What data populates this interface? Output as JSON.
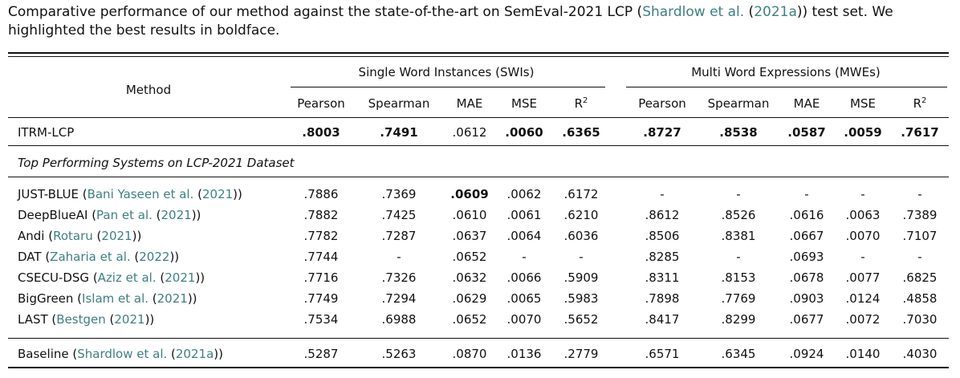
{
  "caption": {
    "before": "Comparative performance of our method against the state-of-the-art on SemEval-2021 LCP (",
    "cite_name": "Shardlow et al.",
    "mid": " (",
    "cite_year": "2021a",
    "after": ")) test set. We highlighted the best results in boldface."
  },
  "table": {
    "method_header": "Method",
    "group_swi": "Single Word Instances (SWIs)",
    "group_mwe": "Multi Word Expressions (MWEs)",
    "metric_headers": [
      "Pearson",
      "Spearman",
      "MAE",
      "MSE",
      "R"
    ],
    "r_sup": "2",
    "section_title": "Top Performing Systems on LCP-2021 Dataset",
    "rows": [
      {
        "name": "ITRM-LCP",
        "cite_name": "",
        "cite_year": "",
        "values": [
          ".8003",
          ".7491",
          ".0612",
          ".0060",
          ".6365",
          ".8727",
          ".8538",
          ".0587",
          ".0059",
          ".7617"
        ],
        "bold": [
          true,
          true,
          false,
          true,
          true,
          true,
          true,
          true,
          true,
          true
        ]
      },
      {
        "name": "JUST-BLUE",
        "cite_name": "Bani Yaseen et al.",
        "cite_year": "2021",
        "values": [
          ".7886",
          ".7369",
          ".0609",
          ".0062",
          ".6172",
          "-",
          "-",
          "-",
          "-",
          "-"
        ],
        "bold": [
          false,
          false,
          true,
          false,
          false,
          false,
          false,
          false,
          false,
          false
        ]
      },
      {
        "name": "DeepBlueAI",
        "cite_name": "Pan et al.",
        "cite_year": "2021",
        "values": [
          ".7882",
          ".7425",
          ".0610",
          ".0061",
          ".6210",
          ".8612",
          ".8526",
          ".0616",
          ".0063",
          ".7389"
        ],
        "bold": [
          false,
          false,
          false,
          false,
          false,
          false,
          false,
          false,
          false,
          false
        ]
      },
      {
        "name": "Andi",
        "cite_name": "Rotaru",
        "cite_year": "2021",
        "values": [
          ".7782",
          ".7287",
          ".0637",
          ".0064",
          ".6036",
          ".8506",
          ".8381",
          ".0667",
          ".0070",
          ".7107"
        ],
        "bold": [
          false,
          false,
          false,
          false,
          false,
          false,
          false,
          false,
          false,
          false
        ]
      },
      {
        "name": "DAT",
        "cite_name": "Zaharia et al.",
        "cite_year": "2022",
        "values": [
          ".7744",
          "-",
          ".0652",
          "-",
          "-",
          ".8285",
          "-",
          ".0693",
          "-",
          "-"
        ],
        "bold": [
          false,
          false,
          false,
          false,
          false,
          false,
          false,
          false,
          false,
          false
        ]
      },
      {
        "name": "CSECU-DSG",
        "cite_name": "Aziz et al.",
        "cite_year": "2021",
        "values": [
          ".7716",
          ".7326",
          ".0632",
          ".0066",
          ".5909",
          ".8311",
          ".8153",
          ".0678",
          ".0077",
          ".6825"
        ],
        "bold": [
          false,
          false,
          false,
          false,
          false,
          false,
          false,
          false,
          false,
          false
        ]
      },
      {
        "name": "BigGreen",
        "cite_name": "Islam et al.",
        "cite_year": "2021",
        "values": [
          ".7749",
          ".7294",
          ".0629",
          ".0065",
          ".5983",
          ".7898",
          ".7769",
          ".0903",
          ".0124",
          ".4858"
        ],
        "bold": [
          false,
          false,
          false,
          false,
          false,
          false,
          false,
          false,
          false,
          false
        ]
      },
      {
        "name": "LAST",
        "cite_name": "Bestgen",
        "cite_year": "2021",
        "values": [
          ".7534",
          ".6988",
          ".0652",
          ".0070",
          ".5652",
          ".8417",
          ".8299",
          ".0677",
          ".0072",
          ".7030"
        ],
        "bold": [
          false,
          false,
          false,
          false,
          false,
          false,
          false,
          false,
          false,
          false
        ]
      },
      {
        "name": "Baseline",
        "cite_name": "Shardlow et al.",
        "cite_year": "2021a",
        "values": [
          ".5287",
          ".5263",
          ".0870",
          ".0136",
          ".2779",
          ".6571",
          ".6345",
          ".0924",
          ".0140",
          ".4030"
        ],
        "bold": [
          false,
          false,
          false,
          false,
          false,
          false,
          false,
          false,
          false,
          false
        ]
      }
    ]
  }
}
